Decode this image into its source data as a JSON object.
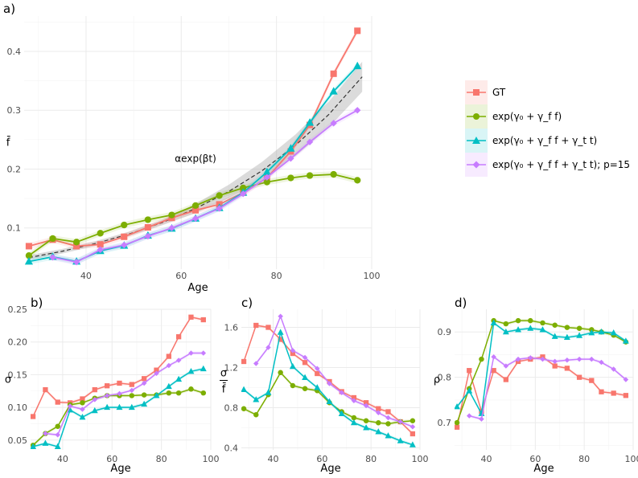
{
  "legend": {
    "entries": [
      {
        "label": "GT",
        "color": "#F8766D",
        "marker": "square"
      },
      {
        "label": "exp(γ₀ + γ_f f)",
        "color": "#7CAE00",
        "marker": "circle"
      },
      {
        "label": "exp(γ₀ + γ_f f + γ_t t)",
        "color": "#00BFC4",
        "marker": "triangle"
      },
      {
        "label": "exp(γ₀ + γ_f f + γ_t t); p=15",
        "color": "#C77CFF",
        "marker": "diamond"
      }
    ]
  },
  "chart_data": [
    {
      "panel": "a)",
      "type": "line",
      "xlabel": "Age",
      "ylabel": "f̄",
      "xlim": [
        27,
        100
      ],
      "ylim": [
        0.03,
        0.46
      ],
      "xticks": [
        40,
        60,
        80,
        100
      ],
      "yticks": [
        0.1,
        0.2,
        0.3,
        0.4
      ],
      "yticklabels": [
        "0.1",
        "0.2",
        "0.3",
        "0.4"
      ],
      "annotation": "αexp(βt)",
      "fit_curve": {
        "label": "αexp(βt)",
        "a": 0.0225,
        "b": 0.0282,
        "x": [
          28,
          35,
          42,
          49,
          56,
          63,
          70,
          77,
          84,
          91,
          98
        ]
      },
      "x": [
        28,
        33,
        38,
        43,
        48,
        53,
        58,
        63,
        68,
        73,
        78,
        83,
        87,
        92,
        97
      ],
      "series": [
        {
          "name": "GT",
          "values": [
            0.069,
            0.08,
            0.069,
            0.072,
            0.085,
            0.101,
            0.117,
            0.13,
            0.14,
            0.16,
            0.185,
            0.23,
            0.275,
            0.362,
            0.435
          ]
        },
        {
          "name": "exp(γ₀ + γ_f f)",
          "values": [
            0.053,
            0.082,
            0.076,
            0.091,
            0.105,
            0.114,
            0.122,
            0.138,
            0.155,
            0.168,
            0.178,
            0.185,
            0.189,
            0.191,
            0.181
          ]
        },
        {
          "name": "exp(γ₀ + γ_f f + γ_t t)",
          "values": [
            0.043,
            0.051,
            0.043,
            0.061,
            0.07,
            0.087,
            0.099,
            0.116,
            0.134,
            0.16,
            0.195,
            0.235,
            0.279,
            0.332,
            0.375
          ]
        },
        {
          "name": "exp(γ₀ + γ_f f + γ_t t); p=15",
          "values": [
            null,
            0.05,
            0.042,
            0.063,
            0.071,
            0.086,
            0.1,
            0.116,
            0.133,
            0.158,
            0.186,
            0.218,
            0.246,
            0.278,
            0.3
          ]
        }
      ]
    },
    {
      "panel": "b)",
      "type": "line",
      "xlabel": "Age",
      "ylabel": "σ",
      "xlim": [
        27,
        100
      ],
      "ylim": [
        0.035,
        0.25
      ],
      "xticks": [
        40,
        60,
        80,
        100
      ],
      "yticks": [
        0.05,
        0.1,
        0.15,
        0.2,
        0.25
      ],
      "yticklabels": [
        "0.05",
        "0.10",
        "0.15",
        "0.20",
        "0.25"
      ],
      "x": [
        28,
        33,
        38,
        43,
        48,
        53,
        58,
        63,
        68,
        73,
        78,
        83,
        87,
        92,
        97
      ],
      "series": [
        {
          "name": "GT",
          "values": [
            0.086,
            0.127,
            0.108,
            0.107,
            0.113,
            0.127,
            0.133,
            0.137,
            0.135,
            0.144,
            0.157,
            0.178,
            0.208,
            0.238,
            0.234
          ]
        },
        {
          "name": "exp(γ₀ + γ_f f)",
          "values": [
            0.042,
            0.06,
            0.071,
            0.104,
            0.107,
            0.114,
            0.118,
            0.118,
            0.118,
            0.119,
            0.119,
            0.122,
            0.122,
            0.128,
            0.122
          ]
        },
        {
          "name": "exp(γ₀ + γ_f f + γ_t t)",
          "values": [
            0.04,
            0.045,
            0.04,
            0.096,
            0.085,
            0.095,
            0.1,
            0.1,
            0.1,
            0.105,
            0.118,
            0.132,
            0.143,
            0.155,
            0.159
          ]
        },
        {
          "name": "exp(γ₀ + γ_f f + γ_t t); p=15",
          "values": [
            null,
            0.06,
            0.058,
            0.102,
            0.097,
            0.112,
            0.118,
            0.121,
            0.126,
            0.137,
            0.152,
            0.164,
            0.172,
            0.183,
            0.183
          ]
        }
      ]
    },
    {
      "panel": "c)",
      "type": "line",
      "xlabel": "Age",
      "ylabel": "σ / f̄",
      "xlim": [
        27,
        100
      ],
      "ylim": [
        0.38,
        1.78
      ],
      "xticks": [
        40,
        60,
        80,
        100
      ],
      "yticks": [
        0.4,
        0.8,
        1.2,
        1.6
      ],
      "yticklabels": [
        "0.4",
        "0.8",
        "1.2",
        "1.6"
      ],
      "x": [
        28,
        33,
        38,
        43,
        48,
        53,
        58,
        63,
        68,
        73,
        78,
        83,
        87,
        92,
        97
      ],
      "series": [
        {
          "name": "GT",
          "values": [
            1.26,
            1.62,
            1.6,
            1.48,
            1.34,
            1.25,
            1.14,
            1.06,
            0.96,
            0.9,
            0.85,
            0.79,
            0.76,
            0.66,
            0.54
          ]
        },
        {
          "name": "exp(γ₀ + γ_f f)",
          "values": [
            0.79,
            0.73,
            0.93,
            1.15,
            1.02,
            0.99,
            0.97,
            0.85,
            0.76,
            0.7,
            0.67,
            0.65,
            0.64,
            0.66,
            0.67
          ]
        },
        {
          "name": "exp(γ₀ + γ_f f + γ_t t)",
          "values": [
            0.98,
            0.88,
            0.95,
            1.55,
            1.21,
            1.1,
            1.0,
            0.86,
            0.74,
            0.65,
            0.6,
            0.56,
            0.52,
            0.47,
            0.43
          ]
        },
        {
          "name": "exp(γ₀ + γ_f f + γ_t t); p=15",
          "values": [
            null,
            1.24,
            1.4,
            1.71,
            1.37,
            1.3,
            1.19,
            1.04,
            0.95,
            0.87,
            0.82,
            0.75,
            0.7,
            0.66,
            0.61
          ]
        }
      ]
    },
    {
      "panel": "d)",
      "type": "line",
      "xlabel": "Age",
      "ylabel": "ρ",
      "xlim": [
        27,
        100
      ],
      "ylim": [
        0.64,
        0.95
      ],
      "xticks": [
        40,
        60,
        80,
        100
      ],
      "yticks": [
        0.7,
        0.8,
        0.9
      ],
      "yticklabels": [
        "0.7",
        "0.8",
        "0.9"
      ],
      "x": [
        28,
        33,
        38,
        43,
        48,
        53,
        58,
        63,
        68,
        73,
        78,
        83,
        87,
        92,
        97
      ],
      "series": [
        {
          "name": "GT",
          "values": [
            0.69,
            0.815,
            0.725,
            0.815,
            0.795,
            0.835,
            0.84,
            0.845,
            0.825,
            0.82,
            0.8,
            0.793,
            0.768,
            0.765,
            0.76
          ]
        },
        {
          "name": "exp(γ₀ + γ_f f)",
          "values": [
            0.7,
            0.775,
            0.84,
            0.925,
            0.918,
            0.925,
            0.925,
            0.92,
            0.915,
            0.91,
            0.908,
            0.905,
            0.9,
            0.893,
            0.878
          ]
        },
        {
          "name": "exp(γ₀ + γ_f f + γ_t t)",
          "values": [
            0.735,
            0.77,
            0.72,
            0.92,
            0.9,
            0.905,
            0.908,
            0.905,
            0.89,
            0.888,
            0.892,
            0.898,
            0.9,
            0.898,
            0.88
          ]
        },
        {
          "name": "exp(γ₀ + γ_f f + γ_t t); p=15",
          "values": [
            null,
            0.715,
            0.708,
            0.845,
            0.825,
            0.84,
            0.843,
            0.84,
            0.835,
            0.838,
            0.84,
            0.84,
            0.833,
            0.818,
            0.795
          ]
        }
      ]
    }
  ]
}
